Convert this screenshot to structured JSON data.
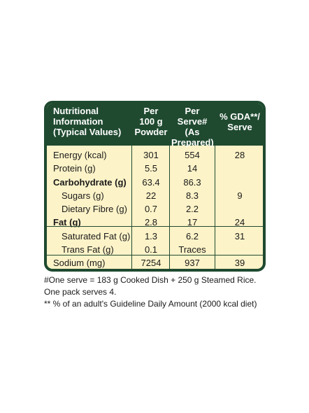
{
  "header": {
    "nutrition": "Nutritional\nInformation\n(Typical Values)",
    "col1": "Per\n100 g\nPowder",
    "col2": "Per\nServe# (As\nPrepared)",
    "col3": "% GDA**/\nServe"
  },
  "rows": [
    {
      "name": "Energy (kcal)",
      "v1": "301",
      "v2": "554",
      "v3": "28",
      "bold": false,
      "indent": false
    },
    {
      "name": "Protein (g)",
      "v1": "5.5",
      "v2": "14",
      "v3": "",
      "bold": false,
      "indent": false
    },
    {
      "name": "Carbohydrate (g)",
      "v1": "63.4",
      "v2": "86.3",
      "v3": "",
      "bold": true,
      "indent": false
    },
    {
      "name": "Sugars (g)",
      "v1": "22",
      "v2": "8.3",
      "v3": "9",
      "bold": false,
      "indent": true
    },
    {
      "name": "Dietary Fibre (g)",
      "v1": "0.7",
      "v2": "2.2",
      "v3": "",
      "bold": false,
      "indent": true
    },
    {
      "name": "Fat (g)",
      "v1": "2.8",
      "v2": "17",
      "v3": "24",
      "bold": true,
      "indent": false
    },
    {
      "name": "Saturated Fat (g)",
      "v1": "1.3",
      "v2": "6.2",
      "v3": "31",
      "bold": false,
      "indent": true
    },
    {
      "name": "Trans Fat (g)",
      "v1": "0.1",
      "v2": "Traces",
      "v3": "",
      "bold": false,
      "indent": true
    },
    {
      "name": "Sodium (mg)",
      "v1": "7254",
      "v2": "937",
      "v3": "39",
      "bold": false,
      "indent": false
    }
  ],
  "footnotes": {
    "line1": "#One serve = 183 g Cooked Dish + 250 g Steamed Rice.",
    "line2": "One pack serves 4.",
    "line3": "** % of an adult's Guideline Daily Amount (2000 kcal diet)"
  },
  "colors": {
    "border": "#1f4a30",
    "background": "#fdf3c8"
  }
}
